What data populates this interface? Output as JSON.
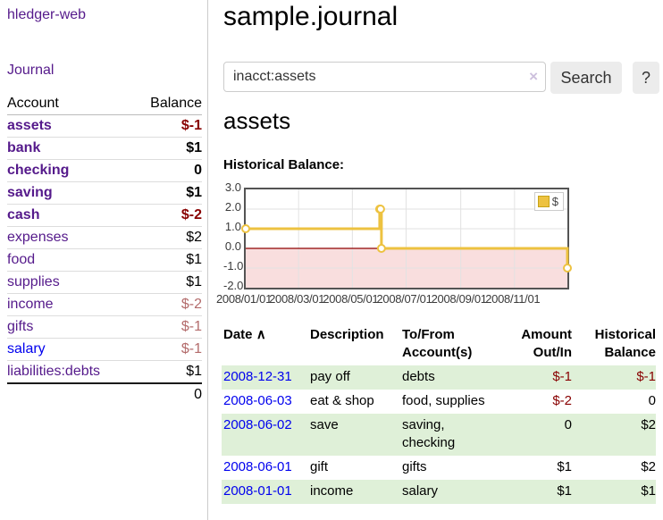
{
  "sidebar": {
    "brand": "hledger-web",
    "journal_link": "Journal",
    "accounts": {
      "header": {
        "account": "Account",
        "balance": "Balance"
      },
      "rows": [
        {
          "name": "assets",
          "balance": "$-1"
        },
        {
          "name": "bank",
          "balance": "$1"
        },
        {
          "name": "checking",
          "balance": "0"
        },
        {
          "name": "saving",
          "balance": "$1"
        },
        {
          "name": "cash",
          "balance": "$-2"
        },
        {
          "name": "expenses",
          "balance": "$2"
        },
        {
          "name": "food",
          "balance": "$1"
        },
        {
          "name": "supplies",
          "balance": "$1"
        },
        {
          "name": "income",
          "balance": "$-2"
        },
        {
          "name": "gifts",
          "balance": "$-1"
        },
        {
          "name": "salary",
          "balance": "$-1"
        },
        {
          "name": "liabilities:debts",
          "balance": "$1"
        }
      ],
      "total": "0"
    }
  },
  "header": {
    "title": "sample.journal"
  },
  "search": {
    "value": "inacct:assets",
    "clear_icon": "×",
    "search_button": "Search",
    "help_button": "?"
  },
  "content": {
    "heading": "assets",
    "chart_title": "Historical Balance:"
  },
  "chart_data": {
    "type": "line",
    "style": "steps",
    "title": "Historical Balance",
    "x_domain_days": 365,
    "xticks": [
      {
        "day": 0,
        "label": "2008/01/01"
      },
      {
        "day": 60,
        "label": "2008/03/01"
      },
      {
        "day": 121,
        "label": "2008/05/01"
      },
      {
        "day": 182,
        "label": "2008/07/01"
      },
      {
        "day": 244,
        "label": "2008/09/01"
      },
      {
        "day": 305,
        "label": "2008/11/01"
      }
    ],
    "yticks": [
      3.0,
      2.0,
      1.0,
      0.0,
      -1.0,
      -2.0
    ],
    "ylim": [
      -2,
      3
    ],
    "series": [
      {
        "name": "$",
        "color": "#edc240",
        "points": [
          [
            0,
            1
          ],
          [
            152,
            2
          ],
          [
            153,
            2
          ],
          [
            154,
            0
          ],
          [
            365,
            -1
          ]
        ]
      }
    ],
    "grid_color": "#e2e2e2",
    "border_color": "#545454",
    "negative_region_color": "#f9dede",
    "zero_line_color": "#8f0000",
    "legend": {
      "position": "top-right",
      "label": "$"
    }
  },
  "register": {
    "headers": {
      "date": "Date",
      "sort_icon": "∧",
      "description": "Description",
      "account": "To/From Account(s)",
      "amount": "Amount Out/In",
      "balance": "Historical Balance"
    },
    "rows": [
      {
        "date": "2008-12-31",
        "description": "pay off",
        "account": "debts",
        "amount": "$-1",
        "balance": "$-1"
      },
      {
        "date": "2008-06-03",
        "description": "eat & shop",
        "account": "food, supplies",
        "amount": "$-2",
        "balance": "0"
      },
      {
        "date": "2008-06-02",
        "description": "save",
        "account": "saving, checking",
        "amount": "0",
        "balance": "$2"
      },
      {
        "date": "2008-06-01",
        "description": "gift",
        "account": "gifts",
        "amount": "$1",
        "balance": "$2"
      },
      {
        "date": "2008-01-01",
        "description": "income",
        "account": "salary",
        "amount": "$1",
        "balance": "$1"
      }
    ]
  },
  "colors": {
    "accent_purple": "#551a8b",
    "link_blue": "#0000ee",
    "negative_strong": "#880000",
    "negative_soft": "#b36b6b",
    "row_green": "#dff0d8",
    "series_gold": "#edc240"
  }
}
